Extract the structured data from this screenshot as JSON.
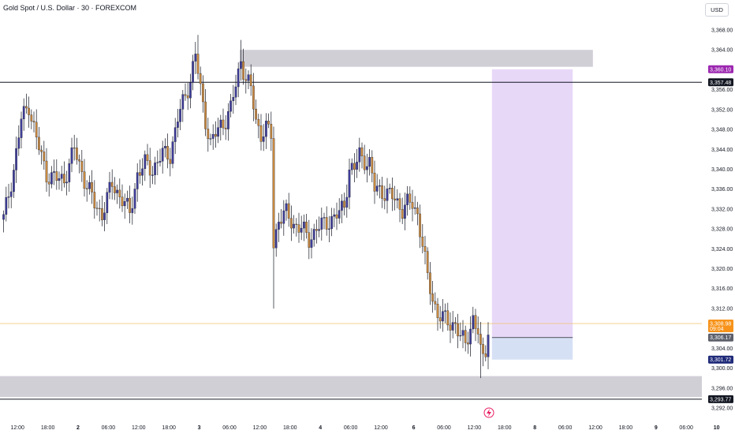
{
  "header": {
    "title": "Gold Spot / U.S. Dollar · 30 · FOREXCOM",
    "currency_button": "USD"
  },
  "chart_data": {
    "type": "candlestick",
    "symbol": "Gold Spot / U.S. Dollar",
    "interval": "30",
    "exchange": "FOREXCOM",
    "currency": "USD",
    "ylim": [
      3290,
      3372
    ],
    "y_ticks": [
      "3,368.00",
      "3,364.00",
      "3,360.00",
      "3,356.00",
      "3,352.00",
      "3,348.00",
      "3,344.00",
      "3,340.00",
      "3,336.00",
      "3,332.00",
      "3,328.00",
      "3,324.00",
      "3,320.00",
      "3,316.00",
      "3,312.00",
      "3,308.00",
      "3,304.00",
      "3,300.00",
      "3,296.00",
      "3,292.00"
    ],
    "y_tick_values": [
      3368,
      3364,
      3360,
      3356,
      3352,
      3348,
      3344,
      3340,
      3336,
      3332,
      3328,
      3324,
      3320,
      3316,
      3312,
      3308,
      3304,
      3300,
      3296,
      3292
    ],
    "x_ticks": [
      {
        "label": "12:00",
        "bar": 6,
        "bold": false
      },
      {
        "label": "18:00",
        "bar": 18,
        "bold": false
      },
      {
        "label": "2",
        "bar": 30,
        "bold": true
      },
      {
        "label": "06:00",
        "bar": 42,
        "bold": false
      },
      {
        "label": "12:00",
        "bar": 54,
        "bold": false
      },
      {
        "label": "18:00",
        "bar": 66,
        "bold": false
      },
      {
        "label": "3",
        "bar": 78,
        "bold": true
      },
      {
        "label": "06:00",
        "bar": 90,
        "bold": false
      },
      {
        "label": "12:00",
        "bar": 102,
        "bold": false
      },
      {
        "label": "18:00",
        "bar": 114,
        "bold": false
      },
      {
        "label": "4",
        "bar": 126,
        "bold": true
      },
      {
        "label": "06:00",
        "bar": 138,
        "bold": false
      },
      {
        "label": "12:00",
        "bar": 150,
        "bold": false
      },
      {
        "label": "6",
        "bar": 163,
        "bold": true
      },
      {
        "label": "06:00",
        "bar": 175,
        "bold": false
      },
      {
        "label": "12:00",
        "bar": 187,
        "bold": false
      },
      {
        "label": "18:00",
        "bar": 199,
        "bold": false
      },
      {
        "label": "8",
        "bar": 211,
        "bold": true
      },
      {
        "label": "06:00",
        "bar": 223,
        "bold": false
      },
      {
        "label": "12:00",
        "bar": 235,
        "bold": false
      },
      {
        "label": "18:00",
        "bar": 247,
        "bold": false
      },
      {
        "label": "9",
        "bar": 259,
        "bold": true
      },
      {
        "label": "06:00",
        "bar": 271,
        "bold": false
      },
      {
        "label": "10",
        "bar": 283,
        "bold": true
      }
    ],
    "candle_count": 193,
    "anchors": [
      [
        0,
        3330
      ],
      [
        4,
        3340
      ],
      [
        7,
        3350
      ],
      [
        10,
        3353
      ],
      [
        13,
        3346
      ],
      [
        17,
        3339
      ],
      [
        21,
        3338
      ],
      [
        24,
        3338
      ],
      [
        28,
        3344
      ],
      [
        32,
        3338
      ],
      [
        36,
        3333
      ],
      [
        39,
        3331
      ],
      [
        43,
        3337
      ],
      [
        47,
        3334
      ],
      [
        50,
        3331
      ],
      [
        53,
        3339
      ],
      [
        56,
        3341
      ],
      [
        59,
        3340
      ],
      [
        63,
        3343
      ],
      [
        66,
        3343
      ],
      [
        69,
        3350
      ],
      [
        72,
        3355
      ],
      [
        74,
        3358
      ],
      [
        76,
        3363
      ],
      [
        78,
        3356
      ],
      [
        80,
        3350
      ],
      [
        82,
        3345
      ],
      [
        84,
        3347
      ],
      [
        86,
        3349
      ],
      [
        88,
        3350
      ],
      [
        90,
        3352
      ],
      [
        92,
        3357
      ],
      [
        94,
        3362
      ],
      [
        96,
        3358
      ],
      [
        98,
        3356
      ],
      [
        100,
        3350
      ],
      [
        102,
        3347
      ],
      [
        104,
        3348
      ],
      [
        106,
        3347
      ],
      [
        107,
        3325
      ],
      [
        109,
        3330
      ],
      [
        112,
        3331
      ],
      [
        115,
        3329
      ],
      [
        118,
        3328
      ],
      [
        121,
        3326
      ],
      [
        124,
        3328
      ],
      [
        127,
        3329
      ],
      [
        130,
        3330
      ],
      [
        133,
        3331
      ],
      [
        135,
        3333
      ],
      [
        137,
        3340
      ],
      [
        139,
        3340
      ],
      [
        141,
        3343
      ],
      [
        143,
        3342
      ],
      [
        145,
        3341
      ],
      [
        147,
        3336
      ],
      [
        149,
        3336
      ],
      [
        152,
        3335
      ],
      [
        155,
        3334
      ],
      [
        158,
        3332
      ],
      [
        160,
        3333
      ],
      [
        162,
        3333
      ],
      [
        164,
        3331
      ],
      [
        166,
        3325
      ],
      [
        168,
        3318
      ],
      [
        170,
        3314
      ],
      [
        172,
        3311
      ],
      [
        174,
        3310
      ],
      [
        177,
        3309
      ],
      [
        179,
        3309
      ],
      [
        181,
        3306
      ],
      [
        183,
        3305
      ],
      [
        186,
        3310
      ],
      [
        188,
        3307
      ],
      [
        189,
        3303
      ],
      [
        190,
        3302
      ],
      [
        191,
        3304
      ],
      [
        192,
        3308
      ]
    ],
    "lows_extreme": [
      {
        "bar": 107,
        "low": 3312
      },
      {
        "bar": 189,
        "low": 3298
      }
    ],
    "highs_extreme": [
      {
        "bar": 77,
        "high": 3367
      },
      {
        "bar": 94,
        "high": 3366
      }
    ],
    "zones": [
      {
        "label": "supply",
        "y_top": 3364,
        "y_bottom": 3360.6,
        "bar_from": 94,
        "bar_to": 234,
        "color": "#d1cfd6"
      },
      {
        "label": "demand",
        "y_top": 3298.4,
        "y_bottom": 3294.2,
        "bar_from": -5,
        "bar_to": 290,
        "color": "#d1cfd6"
      },
      {
        "label": "target",
        "y_top": 3360.1,
        "y_bottom": 3306.17,
        "bar_from": 194,
        "bar_to": 226,
        "color": "#e8d8f8"
      },
      {
        "label": "stop",
        "y_top": 3306.17,
        "y_bottom": 3301.72,
        "bar_from": 194,
        "bar_to": 226,
        "color": "#d6e0f5"
      }
    ],
    "horizontal_lines": [
      {
        "label": "level-high",
        "y": 3357.48,
        "color": "#131722"
      },
      {
        "label": "level-low",
        "y": 3293.77,
        "color": "#131722"
      },
      {
        "label": "current-price",
        "y": 3308.98,
        "color": "#f0c36d"
      }
    ],
    "price_tags": [
      {
        "text": "3,360.10",
        "y": 3360.1,
        "bg": "#9c27b0",
        "fg": "#ffffff"
      },
      {
        "text": "3,357.48",
        "y": 3357.48,
        "bg": "#131722",
        "fg": "#ffffff"
      },
      {
        "text": "3,308.98",
        "y": 3308.98,
        "bg": "#f7931a",
        "fg": "#ffffff",
        "sub": "09:04"
      },
      {
        "text": "3,306.17",
        "y": 3306.17,
        "bg": "#5d606b",
        "fg": "#ffffff"
      },
      {
        "text": "3,301.72",
        "y": 3301.72,
        "bg": "#1e2a78",
        "fg": "#ffffff"
      },
      {
        "text": "3,293.77",
        "y": 3293.77,
        "bg": "#131722",
        "fg": "#ffffff"
      }
    ],
    "colors": {
      "up_fill": "#3f3d99",
      "down_fill": "#c7883f",
      "wick": "#131722",
      "axis_text": "#131722"
    }
  }
}
